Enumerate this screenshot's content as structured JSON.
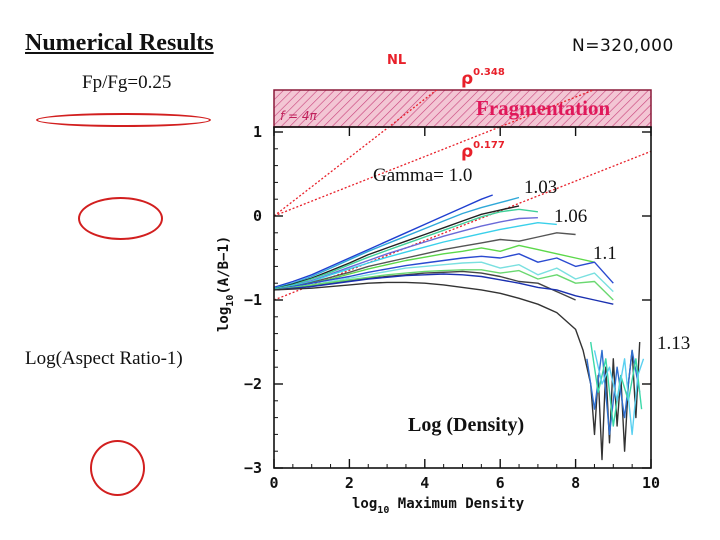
{
  "slide": {
    "title": "Numerical Results",
    "particle_count": "N=320,000",
    "ratio_label": "Fp/Fg=0.25",
    "side_label": "Log(Aspect Ratio-1)"
  },
  "colors": {
    "ellipse": "#d21f1f",
    "guide_line": "#e8202a",
    "band_fill": "#f3c6d4",
    "band_edge": "#8a1a3a",
    "frag_text": "#e0185a"
  },
  "chart_data": {
    "type": "line",
    "xlabel": "log10 Maximum Density",
    "ylabel": "log10(A/B−1)",
    "xlim": [
      0,
      10
    ],
    "ylim": [
      -3,
      1.5
    ],
    "xticks": [
      0,
      2,
      4,
      6,
      8,
      10
    ],
    "yticks": [
      -3,
      -2,
      -1,
      0,
      1
    ],
    "grid": false,
    "annotations": {
      "nl": "NL",
      "rho_steep": "ρ",
      "rho_steep_exp": "0.348",
      "rho_shallow": "ρ",
      "rho_shallow_exp": "0.177",
      "jeans": "f = 4π",
      "fragmentation": "Fragmentation",
      "gamma": "Gamma= 1.0",
      "g103": "1.03",
      "g106": "1.06",
      "g11": "1.1",
      "g113": "1.13",
      "density": "Log (Density)"
    },
    "fragmentation_band": {
      "y_from": 1.0,
      "y_to": 1.5
    },
    "guide_lines": [
      {
        "slope": 0.348,
        "intercept": 0.0
      },
      {
        "slope": 0.177,
        "intercept": 0.0
      },
      {
        "slope": 0.177,
        "intercept": -1.0
      }
    ],
    "series": [
      {
        "color": "#1f3fd0",
        "x": [
          0,
          0.5,
          1,
          1.5,
          2,
          2.5,
          3,
          3.5,
          4,
          4.5,
          5,
          5.5,
          5.8
        ],
        "y": [
          -0.85,
          -0.78,
          -0.7,
          -0.6,
          -0.5,
          -0.4,
          -0.3,
          -0.2,
          -0.1,
          0.0,
          0.1,
          0.2,
          0.25
        ]
      },
      {
        "color": "#2fa8d8",
        "x": [
          0,
          0.5,
          1,
          1.5,
          2,
          2.5,
          3,
          3.5,
          4,
          4.5,
          5,
          5.5,
          6,
          6.5
        ],
        "y": [
          -0.86,
          -0.8,
          -0.72,
          -0.62,
          -0.52,
          -0.42,
          -0.33,
          -0.24,
          -0.15,
          -0.06,
          0.03,
          0.1,
          0.16,
          0.22
        ]
      },
      {
        "color": "#222222",
        "x": [
          0,
          0.5,
          1,
          1.5,
          2,
          2.5,
          3,
          3.5,
          4,
          4.5,
          5,
          5.5,
          6,
          6.5
        ],
        "y": [
          -0.87,
          -0.81,
          -0.74,
          -0.65,
          -0.56,
          -0.46,
          -0.38,
          -0.3,
          -0.22,
          -0.14,
          -0.06,
          0.02,
          0.07,
          0.12
        ]
      },
      {
        "color": "#3fd09a",
        "x": [
          0,
          0.5,
          1,
          1.5,
          2,
          2.5,
          3,
          3.5,
          4,
          4.5,
          5,
          5.5,
          6,
          6.5,
          7
        ],
        "y": [
          -0.87,
          -0.82,
          -0.75,
          -0.67,
          -0.58,
          -0.49,
          -0.41,
          -0.33,
          -0.25,
          -0.17,
          -0.09,
          -0.01,
          0.05,
          0.08,
          0.05
        ]
      },
      {
        "color": "#6a6ad8",
        "x": [
          0,
          0.5,
          1,
          1.5,
          2,
          2.5,
          3,
          3.5,
          4,
          4.5,
          5,
          5.5,
          6,
          6.5,
          7
        ],
        "y": [
          -0.88,
          -0.83,
          -0.77,
          -0.69,
          -0.61,
          -0.53,
          -0.45,
          -0.38,
          -0.31,
          -0.24,
          -0.18,
          -0.12,
          -0.07,
          -0.03,
          -0.02
        ]
      },
      {
        "color": "#3ad0ea",
        "x": [
          0,
          0.5,
          1,
          1.5,
          2,
          2.5,
          3,
          3.5,
          4,
          4.5,
          5,
          5.5,
          6,
          6.5,
          7,
          7.5
        ],
        "y": [
          -0.88,
          -0.83,
          -0.78,
          -0.7,
          -0.63,
          -0.56,
          -0.49,
          -0.43,
          -0.37,
          -0.31,
          -0.26,
          -0.21,
          -0.16,
          -0.12,
          -0.08,
          -0.1
        ]
      },
      {
        "color": "#555555",
        "x": [
          0,
          0.5,
          1,
          1.5,
          2,
          2.5,
          3,
          3.5,
          4,
          4.5,
          5,
          5.5,
          6,
          6.5,
          7,
          7.5,
          8
        ],
        "y": [
          -0.88,
          -0.84,
          -0.79,
          -0.73,
          -0.67,
          -0.6,
          -0.55,
          -0.5,
          -0.45,
          -0.4,
          -0.36,
          -0.32,
          -0.28,
          -0.3,
          -0.25,
          -0.2,
          -0.22
        ]
      },
      {
        "color": "#5cd84a",
        "x": [
          0,
          0.5,
          1,
          1.5,
          2,
          2.5,
          3,
          3.5,
          4,
          4.5,
          5,
          5.5,
          6,
          6.5,
          7,
          7.5,
          8,
          8.5
        ],
        "y": [
          -0.88,
          -0.84,
          -0.8,
          -0.75,
          -0.69,
          -0.63,
          -0.58,
          -0.53,
          -0.49,
          -0.45,
          -0.42,
          -0.38,
          -0.42,
          -0.35,
          -0.4,
          -0.45,
          -0.5,
          -0.55
        ]
      },
      {
        "color": "#2a4ad0",
        "x": [
          0,
          0.5,
          1,
          1.5,
          2,
          2.5,
          3,
          3.5,
          4,
          4.5,
          5,
          5.5,
          6,
          6.5,
          7,
          7.5,
          8,
          8.5,
          9
        ],
        "y": [
          -0.88,
          -0.84,
          -0.8,
          -0.76,
          -0.72,
          -0.67,
          -0.63,
          -0.59,
          -0.56,
          -0.53,
          -0.5,
          -0.48,
          -0.5,
          -0.45,
          -0.55,
          -0.5,
          -0.6,
          -0.55,
          -0.8
        ]
      },
      {
        "color": "#7ae0e0",
        "x": [
          0,
          0.5,
          1,
          1.5,
          2,
          2.5,
          3,
          3.5,
          4,
          4.5,
          5,
          5.5,
          6,
          6.5,
          7,
          7.5,
          8,
          8.5,
          9
        ],
        "y": [
          -0.88,
          -0.85,
          -0.82,
          -0.78,
          -0.74,
          -0.7,
          -0.66,
          -0.62,
          -0.6,
          -0.58,
          -0.56,
          -0.55,
          -0.62,
          -0.58,
          -0.7,
          -0.62,
          -0.75,
          -0.68,
          -0.9
        ]
      },
      {
        "color": "#444444",
        "x": [
          0,
          0.5,
          1,
          1.5,
          2,
          2.5,
          3,
          3.5,
          4,
          4.5,
          5,
          5.5,
          6,
          6.5,
          7,
          7.5,
          8
        ],
        "y": [
          -0.88,
          -0.86,
          -0.83,
          -0.8,
          -0.77,
          -0.74,
          -0.72,
          -0.7,
          -0.68,
          -0.67,
          -0.66,
          -0.68,
          -0.72,
          -0.78,
          -0.8,
          -0.9,
          -1.0
        ]
      },
      {
        "color": "#6ad870",
        "x": [
          0,
          0.5,
          1,
          1.5,
          2,
          2.5,
          3,
          3.5,
          4,
          4.5,
          5,
          5.5,
          6,
          6.5,
          7,
          7.5,
          8,
          8.5,
          9
        ],
        "y": [
          -0.88,
          -0.85,
          -0.82,
          -0.79,
          -0.76,
          -0.73,
          -0.7,
          -0.68,
          -0.66,
          -0.65,
          -0.64,
          -0.64,
          -0.68,
          -0.65,
          -0.75,
          -0.7,
          -0.8,
          -0.78,
          -1.0
        ]
      },
      {
        "color": "#1a30b0",
        "x": [
          0,
          0.5,
          1,
          1.5,
          2,
          2.5,
          3,
          3.5,
          4,
          4.5,
          5,
          5.5,
          6,
          6.5,
          7,
          7.5,
          8,
          8.5,
          9
        ],
        "y": [
          -0.88,
          -0.86,
          -0.84,
          -0.81,
          -0.78,
          -0.75,
          -0.73,
          -0.71,
          -0.7,
          -0.69,
          -0.7,
          -0.72,
          -0.76,
          -0.8,
          -0.85,
          -0.88,
          -0.95,
          -1.0,
          -1.05
        ]
      },
      {
        "color": "#333333",
        "x": [
          0,
          0.5,
          1,
          1.5,
          2,
          2.5,
          3,
          3.5,
          4,
          4.5,
          5,
          5.5,
          6,
          6.5,
          7,
          7.5,
          8,
          8.2,
          8.4,
          8.5,
          8.6,
          8.7,
          8.8,
          8.9,
          9.0,
          9.1,
          9.2,
          9.3,
          9.4,
          9.5,
          9.6,
          9.7
        ],
        "y": [
          -0.88,
          -0.87,
          -0.86,
          -0.84,
          -0.82,
          -0.8,
          -0.79,
          -0.79,
          -0.8,
          -0.82,
          -0.85,
          -0.88,
          -0.92,
          -0.98,
          -1.05,
          -1.15,
          -1.35,
          -1.6,
          -2.0,
          -2.6,
          -1.9,
          -2.9,
          -1.8,
          -2.7,
          -1.7,
          -2.5,
          -1.9,
          -2.8,
          -2.0,
          -1.6,
          -2.4,
          -1.5
        ]
      },
      {
        "color": "#2f6fd0",
        "x": [
          8.3,
          8.5,
          8.7,
          8.9,
          9.1,
          9.3,
          9.5,
          9.7
        ],
        "y": [
          -1.7,
          -2.3,
          -1.6,
          -2.6,
          -1.8,
          -2.4,
          -1.6,
          -2.1
        ]
      },
      {
        "color": "#3ad8a8",
        "x": [
          8.4,
          8.6,
          8.8,
          9.0,
          9.2,
          9.4,
          9.6,
          9.75
        ],
        "y": [
          -1.5,
          -2.1,
          -1.7,
          -2.5,
          -1.9,
          -2.2,
          -1.7,
          -2.3
        ]
      },
      {
        "color": "#5ad0f0",
        "x": [
          8.5,
          8.7,
          8.9,
          9.1,
          9.3,
          9.5,
          9.65,
          9.8
        ],
        "y": [
          -1.6,
          -2.0,
          -1.8,
          -2.2,
          -1.7,
          -2.6,
          -1.9,
          -1.7
        ]
      }
    ]
  }
}
